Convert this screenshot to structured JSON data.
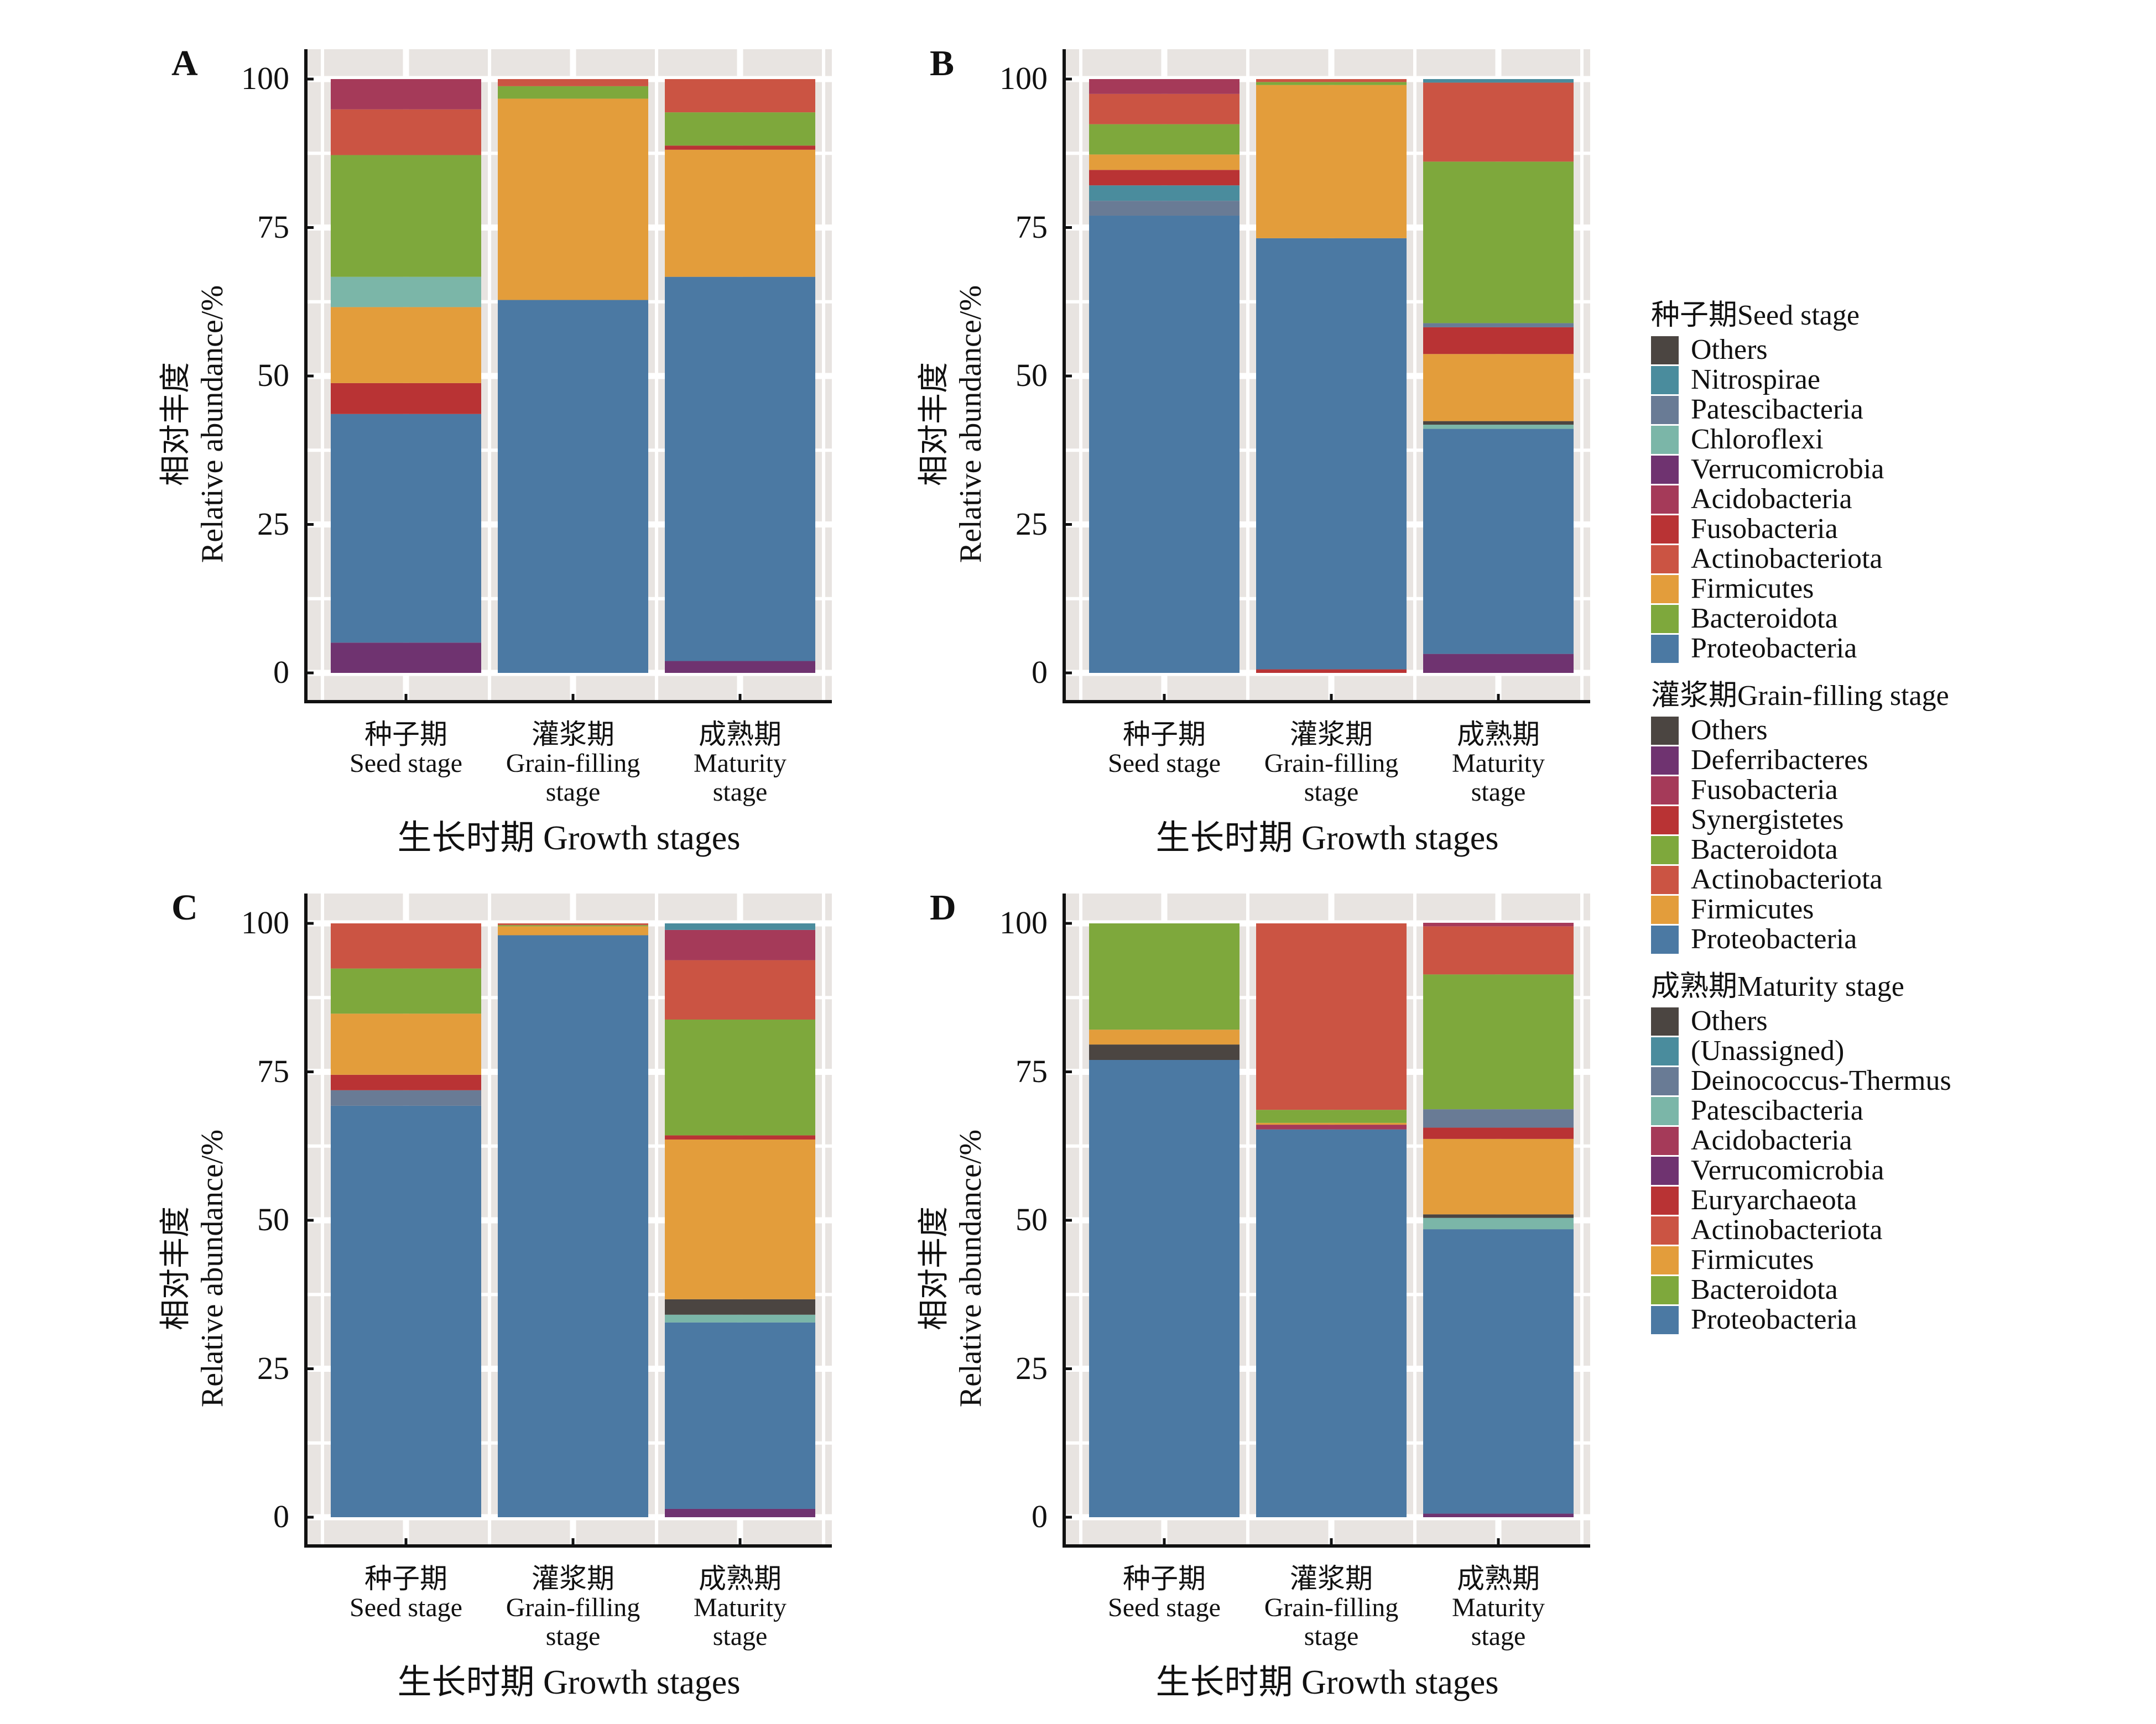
{
  "figure": {
    "x_title": "生长时期 Growth stages",
    "y_title_cn": "相对丰度",
    "y_title_en": "Relative abundance/%",
    "x_categories": [
      {
        "cn": "种子期",
        "en1": "Seed stage",
        "en2": ""
      },
      {
        "cn": "灌浆期",
        "en1": "Grain-filling",
        "en2": "stage"
      },
      {
        "cn": "成熟期",
        "en1": "Maturity",
        "en2": "stage"
      }
    ],
    "y_ticks": [
      "0",
      "25",
      "50",
      "75",
      "100"
    ]
  },
  "colors": {
    "others": "#4b4541",
    "teal": "#4a8c9d",
    "slate": "#697b95",
    "lightteal": "#7bb6a8",
    "purple": "#6f3370",
    "magenta": "#a53a59",
    "red": "#b93334",
    "orangered": "#cb5443",
    "orange": "#e39d3b",
    "green": "#7ea83c",
    "blue": "#4b79a3",
    "panel_bg": "#e8e4e1",
    "grid": "#ffffff",
    "axis": "#111111"
  },
  "legend": [
    {
      "title": "种子期Seed stage",
      "items": [
        {
          "label": "Others",
          "color": "others"
        },
        {
          "label": "Nitrospirae",
          "color": "teal"
        },
        {
          "label": "Patescibacteria",
          "color": "slate"
        },
        {
          "label": "Chloroflexi",
          "color": "lightteal"
        },
        {
          "label": "Verrucomicrobia",
          "color": "purple"
        },
        {
          "label": "Acidobacteria",
          "color": "magenta"
        },
        {
          "label": "Fusobacteria",
          "color": "red"
        },
        {
          "label": "Actinobacteriota",
          "color": "orangered"
        },
        {
          "label": "Firmicutes",
          "color": "orange"
        },
        {
          "label": "Bacteroidota",
          "color": "green"
        },
        {
          "label": "Proteobacteria",
          "color": "blue"
        }
      ]
    },
    {
      "title": "灌浆期Grain-filling stage",
      "items": [
        {
          "label": "Others",
          "color": "others"
        },
        {
          "label": "Deferribacteres",
          "color": "purple"
        },
        {
          "label": "Fusobacteria",
          "color": "magenta"
        },
        {
          "label": "Synergistetes",
          "color": "red"
        },
        {
          "label": "Bacteroidota",
          "color": "green"
        },
        {
          "label": "Actinobacteriota",
          "color": "orangered"
        },
        {
          "label": "Firmicutes",
          "color": "orange"
        },
        {
          "label": "Proteobacteria",
          "color": "blue"
        }
      ]
    },
    {
      "title": "成熟期Maturity stage",
      "items": [
        {
          "label": "Others",
          "color": "others"
        },
        {
          "label": "(Unassigned)",
          "color": "teal"
        },
        {
          "label": "Deinococcus-Thermus",
          "color": "slate"
        },
        {
          "label": "Patescibacteria",
          "color": "lightteal"
        },
        {
          "label": "Acidobacteria",
          "color": "magenta"
        },
        {
          "label": "Verrucomicrobia",
          "color": "purple"
        },
        {
          "label": "Euryarchaeota",
          "color": "red"
        },
        {
          "label": "Actinobacteriota",
          "color": "orangered"
        },
        {
          "label": "Firmicutes",
          "color": "orange"
        },
        {
          "label": "Bacteroidota",
          "color": "green"
        },
        {
          "label": "Proteobacteria",
          "color": "blue"
        }
      ]
    }
  ],
  "chart_data": [
    {
      "panel": "A",
      "type": "bar",
      "stacked": true,
      "categories": [
        "种子期 Seed stage",
        "灌浆期 Grain-filling stage",
        "成熟期 Maturity stage"
      ],
      "xlabel": "生长时期 Growth stages",
      "ylabel": "相对丰度 Relative abundance/%",
      "ylim": [
        0,
        100
      ],
      "grid": true,
      "bars": [
        {
          "segments": [
            {
              "color": "purple",
              "value": 5.1
            },
            {
              "color": "blue",
              "value": 38.5
            },
            {
              "color": "red",
              "value": 5.2
            },
            {
              "color": "orange",
              "value": 12.8
            },
            {
              "color": "lightteal",
              "value": 5.1
            },
            {
              "color": "green",
              "value": 20.5
            },
            {
              "color": "orangered",
              "value": 7.7
            },
            {
              "color": "magenta",
              "value": 5.1
            }
          ]
        },
        {
          "segments": [
            {
              "color": "blue",
              "value": 62.8
            },
            {
              "color": "orange",
              "value": 33.9
            },
            {
              "color": "green",
              "value": 2.1
            },
            {
              "color": "orangered",
              "value": 1.2
            }
          ]
        },
        {
          "segments": [
            {
              "color": "purple",
              "value": 2.0
            },
            {
              "color": "blue",
              "value": 64.7
            },
            {
              "color": "orange",
              "value": 21.4
            },
            {
              "color": "red",
              "value": 0.7
            },
            {
              "color": "green",
              "value": 5.6
            },
            {
              "color": "orangered",
              "value": 5.6
            }
          ]
        }
      ]
    },
    {
      "panel": "B",
      "type": "bar",
      "stacked": true,
      "categories": [
        "种子期 Seed stage",
        "灌浆期 Grain-filling stage",
        "成熟期 Maturity stage"
      ],
      "xlabel": "生长时期 Growth stages",
      "ylabel": "相对丰度 Relative abundance/%",
      "ylim": [
        0,
        100
      ],
      "grid": true,
      "bars": [
        {
          "segments": [
            {
              "color": "blue",
              "value": 77.0
            },
            {
              "color": "slate",
              "value": 2.5
            },
            {
              "color": "teal",
              "value": 2.6
            },
            {
              "color": "red",
              "value": 2.6
            },
            {
              "color": "orange",
              "value": 2.6
            },
            {
              "color": "green",
              "value": 5.1
            },
            {
              "color": "orangered",
              "value": 5.1
            },
            {
              "color": "magenta",
              "value": 2.5
            }
          ]
        },
        {
          "segments": [
            {
              "color": "red",
              "value": 0.6
            },
            {
              "color": "blue",
              "value": 72.6
            },
            {
              "color": "orange",
              "value": 25.8
            },
            {
              "color": "green",
              "value": 0.5
            },
            {
              "color": "orangered",
              "value": 0.5
            }
          ]
        },
        {
          "segments": [
            {
              "color": "purple",
              "value": 3.2
            },
            {
              "color": "blue",
              "value": 37.9
            },
            {
              "color": "lightteal",
              "value": 0.7
            },
            {
              "color": "others",
              "value": 0.6
            },
            {
              "color": "orange",
              "value": 11.3
            },
            {
              "color": "red",
              "value": 4.5
            },
            {
              "color": "slate",
              "value": 0.7
            },
            {
              "color": "green",
              "value": 27.2
            },
            {
              "color": "orangered",
              "value": 13.3
            },
            {
              "color": "teal",
              "value": 0.6
            }
          ]
        }
      ]
    },
    {
      "panel": "C",
      "type": "bar",
      "stacked": true,
      "categories": [
        "种子期 Seed stage",
        "灌浆期 Grain-filling stage",
        "成熟期 Maturity stage"
      ],
      "xlabel": "生长时期 Growth stages",
      "ylabel": "相对丰度 Relative abundance/%",
      "ylim": [
        0,
        100
      ],
      "grid": true,
      "bars": [
        {
          "segments": [
            {
              "color": "blue",
              "value": 69.3
            },
            {
              "color": "slate",
              "value": 2.6
            },
            {
              "color": "red",
              "value": 2.6
            },
            {
              "color": "orange",
              "value": 10.3
            },
            {
              "color": "green",
              "value": 7.6
            },
            {
              "color": "orangered",
              "value": 7.6
            }
          ]
        },
        {
          "segments": [
            {
              "color": "blue",
              "value": 98.0
            },
            {
              "color": "orange",
              "value": 1.5
            },
            {
              "color": "green",
              "value": 0.2
            },
            {
              "color": "orangered",
              "value": 0.3
            }
          ]
        },
        {
          "segments": [
            {
              "color": "purple",
              "value": 1.4
            },
            {
              "color": "blue",
              "value": 31.4
            },
            {
              "color": "lightteal",
              "value": 1.3
            },
            {
              "color": "others",
              "value": 2.6
            },
            {
              "color": "orange",
              "value": 26.9
            },
            {
              "color": "red",
              "value": 0.7
            },
            {
              "color": "green",
              "value": 19.5
            },
            {
              "color": "orangered",
              "value": 10.0
            },
            {
              "color": "magenta",
              "value": 5.1
            },
            {
              "color": "teal",
              "value": 1.1
            }
          ]
        }
      ]
    },
    {
      "panel": "D",
      "type": "bar",
      "stacked": true,
      "categories": [
        "种子期 Seed stage",
        "灌浆期 Grain-filling stage",
        "成熟期 Maturity stage"
      ],
      "xlabel": "生长时期 Growth stages",
      "ylabel": "相对丰度 Relative abundance/%",
      "ylim": [
        0,
        100
      ],
      "grid": true,
      "bars": [
        {
          "segments": [
            {
              "color": "blue",
              "value": 77.0
            },
            {
              "color": "others",
              "value": 2.6
            },
            {
              "color": "orange",
              "value": 2.5
            },
            {
              "color": "green",
              "value": 17.9
            }
          ]
        },
        {
          "segments": [
            {
              "color": "blue",
              "value": 65.3
            },
            {
              "color": "magenta",
              "value": 0.8
            },
            {
              "color": "orange",
              "value": 0.3
            },
            {
              "color": "green",
              "value": 2.2
            },
            {
              "color": "orangered",
              "value": 31.4
            }
          ]
        },
        {
          "segments": [
            {
              "color": "purple",
              "value": 0.6
            },
            {
              "color": "blue",
              "value": 47.9
            },
            {
              "color": "lightteal",
              "value": 1.9
            },
            {
              "color": "others",
              "value": 0.6
            },
            {
              "color": "orange",
              "value": 12.7
            },
            {
              "color": "red",
              "value": 1.9
            },
            {
              "color": "slate",
              "value": 3.1
            },
            {
              "color": "green",
              "value": 22.7
            },
            {
              "color": "orangered",
              "value": 8.1
            },
            {
              "color": "magenta",
              "value": 0.6
            }
          ]
        }
      ]
    }
  ]
}
